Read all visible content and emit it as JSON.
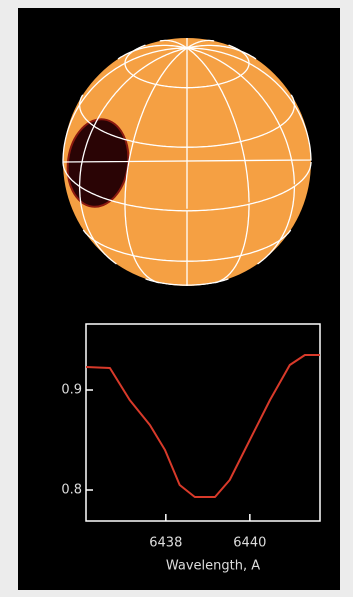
{
  "chart_data": {
    "type": "line",
    "x_label": "Wavelength, A",
    "x": [
      6436.1,
      6436.67,
      6437.14,
      6437.62,
      6437.98,
      6438.33,
      6438.69,
      6439.17,
      6439.52,
      6440.0,
      6440.48,
      6440.95,
      6441.31,
      6441.67
    ],
    "series": [
      {
        "color": "#d83a2a",
        "values": [
          0.923,
          0.922,
          0.89,
          0.865,
          0.84,
          0.805,
          0.793,
          0.793,
          0.81,
          0.85,
          0.89,
          0.925,
          0.935,
          0.935
        ]
      }
    ],
    "xlim": [
      6436.1,
      6441.67
    ],
    "ylim": [
      0.769,
      0.966
    ],
    "xticks": [
      6438,
      6440
    ],
    "yticks": [
      0.8,
      0.9
    ]
  }
}
